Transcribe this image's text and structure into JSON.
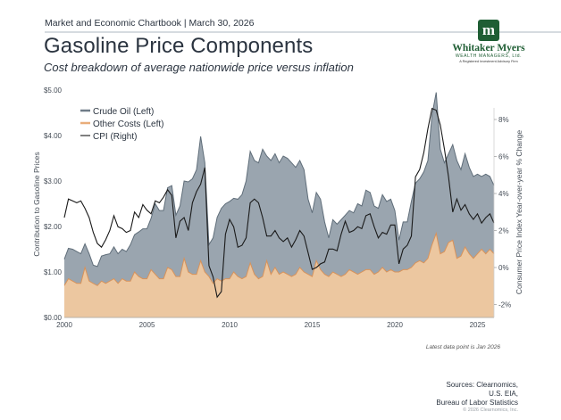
{
  "header": {
    "kicker": "Market and Economic Chartbook | March 30, 2026",
    "title": "Gasoline Price Components",
    "subtitle": "Cost breakdown of average nationwide price versus inflation"
  },
  "logo": {
    "mark": "m",
    "name": "Whitaker Myers",
    "sub": "WEALTH MANAGERS, Ltd.",
    "tagline": "A Registered Investment Advisory Firm",
    "color": "#1f5e34"
  },
  "footer": {
    "note": "Latest data point is Jan 2026",
    "sources": [
      "Sources: Clearnomics,",
      "U.S. EIA,",
      "Bureau of Labor Statistics"
    ],
    "copyright": "© 2026 Clearnomics, Inc."
  },
  "chart_data": {
    "type": "area",
    "title": "Gasoline Price Components",
    "xlabel": "",
    "ylabel": "Contribution to Gasoline Prices",
    "y2label": "Consumer Price Index Year-over-year % Change",
    "xlim": [
      2000,
      2026.08
    ],
    "ylim": [
      0,
      5
    ],
    "y2lim": [
      -3.0,
      10.0
    ],
    "x_ticks": [
      "2000",
      "2005",
      "2010",
      "2015",
      "2020",
      "2025"
    ],
    "x_tick_values": [
      2000,
      2005,
      2010,
      2015,
      2020,
      2025
    ],
    "y_ticks": [
      "$0.00",
      "$1.00",
      "$2.00",
      "$3.00",
      "$4.00",
      "$5.00"
    ],
    "y_tick_values": [
      0,
      1,
      2,
      3,
      4,
      5
    ],
    "y2_ticks": [
      "-2%",
      "0%",
      "2%",
      "4%",
      "6%",
      "8%"
    ],
    "y2_tick_values": [
      -2,
      0,
      2,
      4,
      6,
      8
    ],
    "legend_position": "top-left",
    "colors": {
      "crude": "#9aa5af",
      "crude_line": "#5f6d79",
      "other": "#ecc7a0",
      "other_line": "#d9935a",
      "cpi": "#1a1a1a"
    },
    "x": [
      2000.0,
      2000.25,
      2000.5,
      2000.75,
      2001.0,
      2001.25,
      2001.5,
      2001.75,
      2002.0,
      2002.25,
      2002.5,
      2002.75,
      2003.0,
      2003.25,
      2003.5,
      2003.75,
      2004.0,
      2004.25,
      2004.5,
      2004.75,
      2005.0,
      2005.25,
      2005.5,
      2005.75,
      2006.0,
      2006.25,
      2006.5,
      2006.75,
      2007.0,
      2007.25,
      2007.5,
      2007.75,
      2008.0,
      2008.25,
      2008.5,
      2008.75,
      2009.0,
      2009.25,
      2009.5,
      2009.75,
      2010.0,
      2010.25,
      2010.5,
      2010.75,
      2011.0,
      2011.25,
      2011.5,
      2011.75,
      2012.0,
      2012.25,
      2012.5,
      2012.75,
      2013.0,
      2013.25,
      2013.5,
      2013.75,
      2014.0,
      2014.25,
      2014.5,
      2014.75,
      2015.0,
      2015.25,
      2015.5,
      2015.75,
      2016.0,
      2016.25,
      2016.5,
      2016.75,
      2017.0,
      2017.25,
      2017.5,
      2017.75,
      2018.0,
      2018.25,
      2018.5,
      2018.75,
      2019.0,
      2019.25,
      2019.5,
      2019.75,
      2020.0,
      2020.25,
      2020.5,
      2020.75,
      2021.0,
      2021.25,
      2021.5,
      2021.75,
      2022.0,
      2022.25,
      2022.5,
      2022.75,
      2023.0,
      2023.25,
      2023.5,
      2023.75,
      2024.0,
      2024.25,
      2024.5,
      2024.75,
      2025.0,
      2025.25,
      2025.5,
      2025.75,
      2026.0
    ],
    "series": [
      {
        "name": "Crude Oil (Left)",
        "note": "values are total price (crude + other), crude = total - other",
        "values": [
          1.28,
          1.52,
          1.5,
          1.45,
          1.4,
          1.62,
          1.4,
          1.15,
          1.12,
          1.35,
          1.38,
          1.4,
          1.55,
          1.4,
          1.5,
          1.45,
          1.6,
          1.82,
          1.88,
          1.95,
          1.95,
          2.18,
          2.5,
          2.35,
          2.35,
          2.85,
          2.9,
          2.25,
          2.45,
          3.0,
          2.98,
          3.05,
          3.25,
          3.98,
          3.4,
          1.6,
          1.75,
          2.2,
          2.4,
          2.5,
          2.55,
          2.62,
          2.6,
          2.7,
          3.0,
          3.65,
          3.45,
          3.4,
          3.7,
          3.55,
          3.45,
          3.6,
          3.4,
          3.55,
          3.5,
          3.4,
          3.3,
          3.45,
          3.25,
          2.6,
          2.3,
          2.75,
          2.6,
          2.1,
          1.75,
          2.15,
          2.05,
          2.15,
          2.25,
          2.35,
          2.3,
          2.5,
          2.45,
          2.8,
          2.75,
          2.45,
          2.4,
          2.7,
          2.55,
          2.6,
          2.35,
          1.7,
          2.1,
          2.1,
          2.55,
          2.95,
          3.05,
          3.2,
          3.45,
          4.45,
          4.95,
          3.7,
          3.4,
          3.6,
          3.8,
          3.45,
          3.25,
          3.6,
          3.3,
          3.1,
          3.15,
          3.1,
          3.15,
          3.1,
          2.9
        ]
      },
      {
        "name": "Other Costs (Left)",
        "values": [
          0.7,
          0.85,
          0.8,
          0.75,
          0.75,
          1.1,
          0.8,
          0.75,
          0.7,
          0.8,
          0.75,
          0.8,
          0.85,
          0.75,
          0.85,
          0.8,
          0.8,
          1.0,
          0.9,
          0.85,
          0.85,
          1.05,
          0.95,
          0.85,
          0.85,
          1.1,
          1.05,
          0.9,
          0.9,
          1.3,
          1.0,
          0.95,
          0.95,
          1.25,
          1.0,
          0.9,
          0.75,
          0.85,
          0.8,
          0.85,
          0.85,
          1.0,
          0.9,
          0.85,
          0.9,
          1.2,
          0.95,
          0.85,
          0.9,
          1.25,
          0.95,
          1.1,
          0.95,
          1.0,
          0.95,
          0.9,
          0.95,
          1.1,
          1.0,
          0.95,
          0.9,
          1.25,
          1.05,
          0.95,
          0.9,
          1.0,
          0.95,
          0.9,
          0.95,
          1.05,
          1.0,
          0.95,
          1.0,
          1.05,
          1.05,
          0.95,
          1.0,
          1.1,
          1.0,
          1.05,
          1.0,
          1.0,
          1.05,
          1.05,
          1.1,
          1.2,
          1.25,
          1.2,
          1.3,
          1.6,
          1.85,
          1.4,
          1.45,
          1.65,
          1.7,
          1.3,
          1.35,
          1.55,
          1.4,
          1.3,
          1.4,
          1.5,
          1.4,
          1.5,
          1.4
        ]
      },
      {
        "name": "CPI (Right)",
        "values": [
          2.7,
          3.7,
          3.6,
          3.5,
          3.6,
          3.2,
          2.7,
          1.9,
          1.3,
          1.1,
          1.5,
          2.0,
          2.8,
          2.2,
          2.1,
          1.9,
          2.0,
          3.0,
          2.7,
          3.4,
          3.1,
          2.9,
          3.6,
          3.5,
          3.8,
          4.2,
          3.9,
          1.6,
          2.5,
          2.7,
          2.0,
          3.5,
          4.1,
          4.5,
          5.4,
          0.1,
          -0.5,
          -1.6,
          -1.3,
          1.8,
          2.6,
          2.2,
          1.1,
          1.2,
          1.6,
          3.5,
          3.7,
          3.5,
          2.7,
          1.7,
          1.7,
          2.0,
          1.6,
          1.4,
          1.6,
          1.1,
          1.5,
          2.0,
          1.7,
          0.8,
          -0.1,
          0.0,
          0.2,
          0.3,
          1.0,
          1.0,
          0.9,
          1.8,
          2.5,
          1.9,
          2.0,
          2.2,
          2.1,
          2.8,
          2.9,
          2.2,
          1.6,
          1.9,
          1.8,
          2.3,
          2.3,
          0.2,
          1.0,
          1.2,
          1.7,
          4.9,
          5.3,
          6.2,
          7.5,
          8.6,
          8.5,
          7.7,
          6.4,
          4.9,
          3.0,
          3.7,
          3.1,
          3.4,
          2.9,
          2.6,
          2.9,
          2.4,
          2.7,
          2.9,
          2.4
        ]
      }
    ]
  }
}
